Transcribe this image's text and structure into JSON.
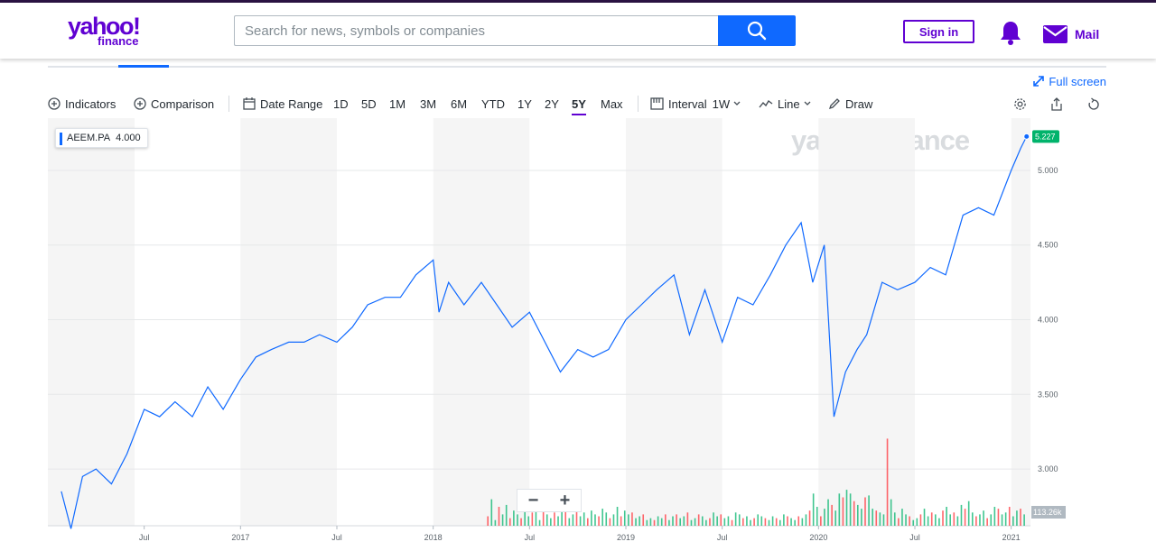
{
  "brand": {
    "logo_top": "yahoo!",
    "logo_bottom": "finance",
    "purple": "#6001d2",
    "blue": "#0f69ff"
  },
  "header": {
    "search_placeholder": "Search for news, symbols or companies",
    "search_icon": "search-icon",
    "signin_label": "Sign in",
    "mail_label": "Mail"
  },
  "chart_controls": {
    "fullscreen_label": "Full screen",
    "indicators_label": "Indicators",
    "comparison_label": "Comparison",
    "date_range_label": "Date Range",
    "ranges": [
      "1D",
      "5D",
      "1M",
      "3M",
      "6M",
      "YTD",
      "1Y",
      "2Y",
      "5Y",
      "Max"
    ],
    "active_range": "5Y",
    "interval_label": "Interval",
    "interval_value": "1W",
    "chart_type_label": "Line",
    "draw_label": "Draw"
  },
  "legend": {
    "symbol": "AEEM.PA",
    "value": "4.000"
  },
  "watermark": "yahoo!finance",
  "last_price": "5.227",
  "volume_label": "113.26k",
  "chart_data": {
    "type": "line",
    "title": "AEEM.PA",
    "series": [
      {
        "name": "AEEM.PA",
        "x": [
          2016.07,
          2016.12,
          2016.18,
          2016.25,
          2016.33,
          2016.41,
          2016.5,
          2016.58,
          2016.66,
          2016.75,
          2016.83,
          2016.91,
          2017.0,
          2017.08,
          2017.16,
          2017.25,
          2017.33,
          2017.41,
          2017.5,
          2017.58,
          2017.66,
          2017.75,
          2017.83,
          2017.91,
          2018.0,
          2018.03,
          2018.08,
          2018.16,
          2018.25,
          2018.33,
          2018.41,
          2018.5,
          2018.58,
          2018.66,
          2018.75,
          2018.83,
          2018.91,
          2019.0,
          2019.08,
          2019.16,
          2019.25,
          2019.33,
          2019.41,
          2019.5,
          2019.58,
          2019.66,
          2019.75,
          2019.83,
          2019.91,
          2019.97,
          2020.03,
          2020.08,
          2020.14,
          2020.2,
          2020.25,
          2020.33,
          2020.41,
          2020.5,
          2020.58,
          2020.66,
          2020.75,
          2020.83,
          2020.91,
          2021.0,
          2021.05,
          2021.08
        ],
        "values": [
          2.85,
          2.6,
          2.95,
          3.0,
          2.9,
          3.1,
          3.4,
          3.35,
          3.45,
          3.35,
          3.55,
          3.4,
          3.6,
          3.75,
          3.8,
          3.85,
          3.85,
          3.9,
          3.85,
          3.95,
          4.1,
          4.15,
          4.15,
          4.3,
          4.4,
          4.05,
          4.25,
          4.1,
          4.25,
          4.1,
          3.95,
          4.05,
          3.85,
          3.65,
          3.8,
          3.75,
          3.8,
          4.0,
          4.1,
          4.2,
          4.3,
          3.9,
          4.2,
          3.85,
          4.15,
          4.1,
          4.3,
          4.5,
          4.65,
          4.25,
          4.5,
          3.35,
          3.65,
          3.8,
          3.9,
          4.25,
          4.2,
          4.25,
          4.35,
          4.3,
          4.7,
          4.75,
          4.7,
          5.0,
          5.15,
          5.227
        ]
      }
    ],
    "x_tick_labels": [
      "Jul",
      "2017",
      "Jul",
      "2018",
      "Jul",
      "2019",
      "Jul",
      "2020",
      "Jul",
      "2021"
    ],
    "x_tick_values": [
      2016.5,
      2017.0,
      2017.5,
      2018.0,
      2018.5,
      2019.0,
      2019.5,
      2020.0,
      2020.5,
      2021.0
    ],
    "y_tick_labels": [
      "3.000",
      "3.500",
      "4.000",
      "4.500",
      "5.000"
    ],
    "y_tick_values": [
      3.0,
      3.5,
      4.0,
      4.5,
      5.0
    ],
    "xlim": [
      2016.0,
      2021.1
    ],
    "ylim": [
      2.62,
      5.35
    ],
    "line_color": "#0f69ff",
    "volume": {
      "start_x": 2018.28,
      "step": 0.0192,
      "values": [
        10,
        28,
        6,
        20,
        12,
        22,
        8,
        16,
        12,
        8,
        20,
        10,
        14,
        18,
        6,
        24,
        12,
        8,
        14,
        10,
        20,
        16,
        8,
        12,
        22,
        10,
        14,
        8,
        16,
        12,
        10,
        18,
        14,
        8,
        12,
        20,
        10,
        16,
        12,
        14,
        8,
        10,
        12,
        6,
        8,
        6,
        10,
        8,
        12,
        6,
        10,
        12,
        8,
        10,
        14,
        6,
        8,
        12,
        10,
        6,
        8,
        14,
        10,
        12,
        8,
        10,
        6,
        14,
        12,
        8,
        10,
        6,
        8,
        12,
        10,
        8,
        6,
        10,
        8,
        6,
        12,
        10,
        8,
        6,
        10,
        8,
        12,
        16,
        34,
        20,
        10,
        18,
        28,
        22,
        16,
        34,
        30,
        38,
        34,
        26,
        22,
        18,
        30,
        32,
        18,
        16,
        14,
        12,
        92,
        28,
        14,
        8,
        18,
        12,
        10,
        6,
        8,
        12,
        18,
        10,
        14,
        12,
        8,
        16,
        20,
        12,
        14,
        10,
        22,
        18,
        26,
        14,
        10,
        12,
        16,
        8,
        12,
        20,
        18,
        12,
        14,
        20,
        10,
        16,
        18,
        12
      ],
      "colors": [
        "up",
        "down"
      ]
    }
  }
}
